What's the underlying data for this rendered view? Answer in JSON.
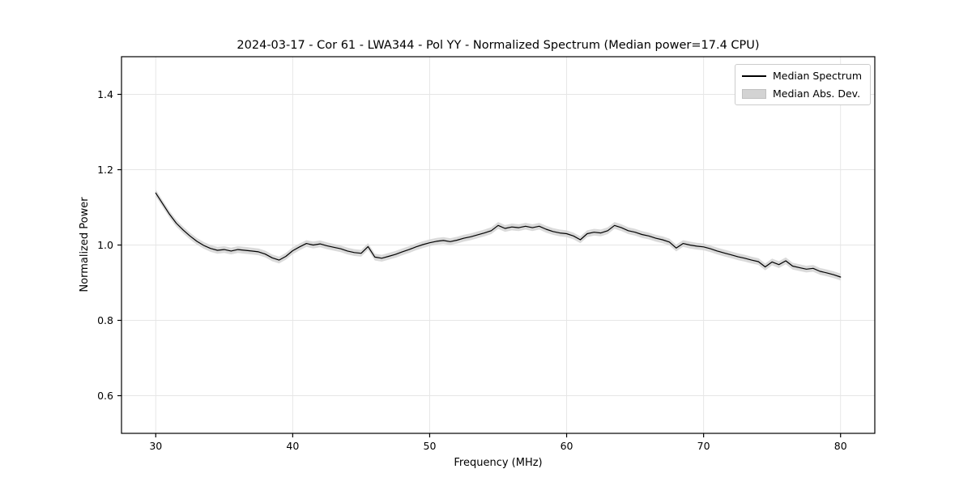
{
  "figure": {
    "title": "2024-03-17 - Cor 61 - LWA344 - Pol YY - Normalized Spectrum (Median power=17.4 CPU)",
    "xlabel": "Frequency (MHz)",
    "ylabel": "Normalized Power"
  },
  "legend": {
    "items": [
      {
        "label": "Median Spectrum",
        "type": "line",
        "color": "#000000"
      },
      {
        "label": "Median Abs. Dev.",
        "type": "patch",
        "color": "#d3d3d3"
      }
    ]
  },
  "chart_data": {
    "type": "line",
    "title": "2024-03-17 - Cor 61 - LWA344 - Pol YY - Normalized Spectrum (Median power=17.4 CPU)",
    "xlabel": "Frequency (MHz)",
    "ylabel": "Normalized Power",
    "xlim": [
      27.5,
      82.5
    ],
    "ylim": [
      0.5,
      1.5
    ],
    "xticks": [
      30,
      40,
      50,
      60,
      70,
      80
    ],
    "xticklabels": [
      "30",
      "40",
      "50",
      "60",
      "70",
      "80"
    ],
    "yticks": [
      0.6,
      0.8,
      1.0,
      1.2,
      1.4
    ],
    "yticklabels": [
      "0.6",
      "0.8",
      "1.0",
      "1.2",
      "1.4"
    ],
    "grid": true,
    "legend_position": "upper right",
    "line_color": "#000000",
    "band_color": "#d3d3d3",
    "band_halfwidth": 0.009,
    "series": [
      {
        "name": "Median Spectrum",
        "x": [
          30,
          30.5,
          31,
          31.5,
          32,
          32.5,
          33,
          33.5,
          34,
          34.5,
          35,
          35.5,
          36,
          36.5,
          37,
          37.5,
          38,
          38.5,
          39,
          39.5,
          40,
          40.5,
          41,
          41.5,
          42,
          42.5,
          43,
          43.5,
          44,
          44.5,
          45,
          45.5,
          46,
          46.5,
          47,
          47.5,
          48,
          48.5,
          49,
          49.5,
          50,
          50.5,
          51,
          51.5,
          52,
          52.5,
          53,
          53.5,
          54,
          54.5,
          55,
          55.5,
          56,
          56.5,
          57,
          57.5,
          58,
          58.5,
          59,
          59.5,
          60,
          60.5,
          61,
          61.5,
          62,
          62.5,
          63,
          63.5,
          64,
          64.5,
          65,
          65.5,
          66,
          66.5,
          67,
          67.5,
          68,
          68.5,
          69,
          69.5,
          70,
          70.5,
          71,
          71.5,
          72,
          72.5,
          73,
          73.5,
          74,
          74.5,
          75,
          75.5,
          76,
          76.5,
          77,
          77.5,
          78,
          78.5,
          79,
          79.5,
          80
        ],
        "y": [
          1.138,
          1.11,
          1.082,
          1.058,
          1.04,
          1.024,
          1.01,
          0.999,
          0.991,
          0.986,
          0.988,
          0.984,
          0.988,
          0.986,
          0.984,
          0.982,
          0.976,
          0.966,
          0.96,
          0.97,
          0.985,
          0.995,
          1.004,
          1.0,
          1.003,
          0.998,
          0.994,
          0.99,
          0.984,
          0.98,
          0.978,
          0.996,
          0.968,
          0.965,
          0.97,
          0.975,
          0.982,
          0.988,
          0.995,
          1.001,
          1.006,
          1.01,
          1.012,
          1.009,
          1.013,
          1.018,
          1.022,
          1.027,
          1.032,
          1.038,
          1.052,
          1.044,
          1.048,
          1.046,
          1.05,
          1.046,
          1.05,
          1.042,
          1.036,
          1.032,
          1.03,
          1.024,
          1.014,
          1.03,
          1.034,
          1.032,
          1.038,
          1.052,
          1.046,
          1.038,
          1.034,
          1.028,
          1.024,
          1.018,
          1.014,
          1.008,
          0.992,
          1.004,
          1.0,
          0.997,
          0.995,
          0.99,
          0.984,
          0.979,
          0.974,
          0.969,
          0.965,
          0.96,
          0.956,
          0.942,
          0.955,
          0.948,
          0.958,
          0.944,
          0.94,
          0.936,
          0.938,
          0.93,
          0.926,
          0.921,
          0.915
        ]
      },
      {
        "name": "Median Abs. Dev.",
        "type": "band",
        "halfwidth": 0.009
      }
    ]
  }
}
